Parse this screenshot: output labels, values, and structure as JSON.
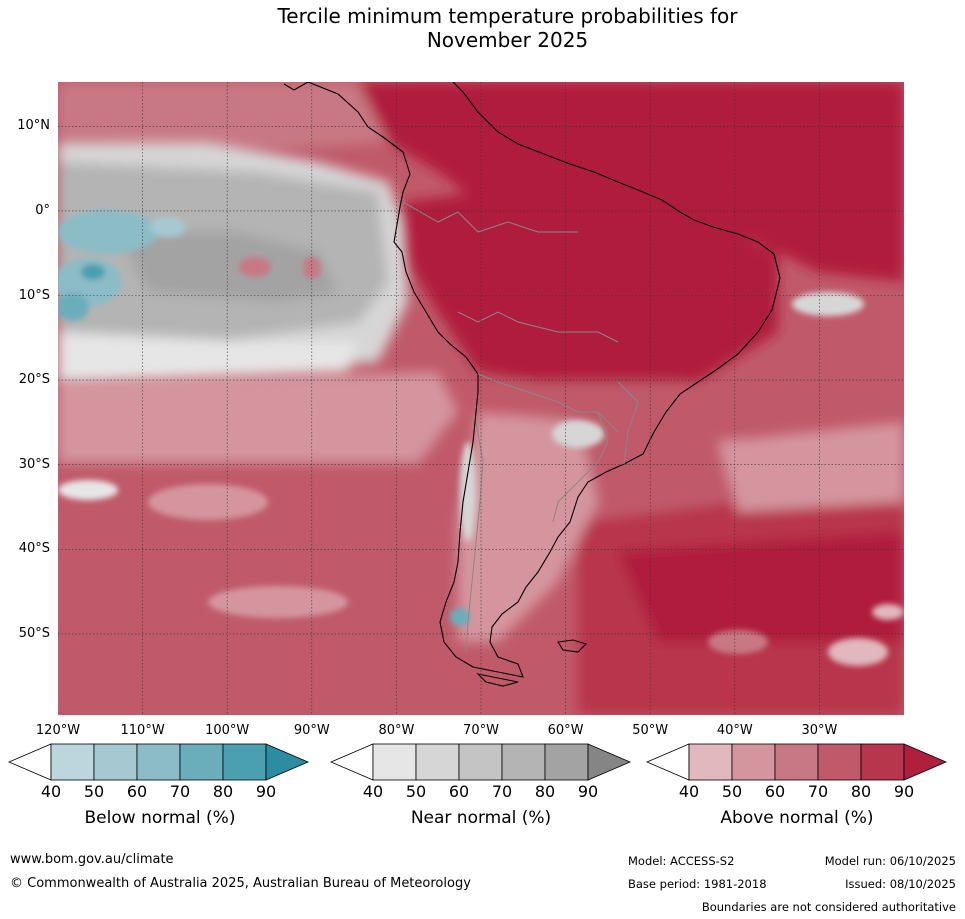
{
  "title": {
    "line1": "Tercile minimum temperature probabilities for",
    "line2": "November 2025"
  },
  "map": {
    "lat_labels": [
      "10°N",
      "0°",
      "10°S",
      "20°S",
      "30°S",
      "40°S",
      "50°S"
    ],
    "lat_values": [
      10,
      0,
      -10,
      -20,
      -30,
      -40,
      -50
    ],
    "lon_labels": [
      "120°W",
      "110°W",
      "100°W",
      "90°W",
      "80°W",
      "70°W",
      "60°W",
      "50°W",
      "40°W",
      "30°W"
    ],
    "lon_values": [
      -120,
      -110,
      -100,
      -90,
      -80,
      -70,
      -60,
      -50,
      -40,
      -30
    ],
    "lon_range": [
      -120,
      -20
    ],
    "lat_range": [
      -60,
      15
    ]
  },
  "legend": {
    "ticks": [
      "40",
      "50",
      "60",
      "70",
      "80",
      "90"
    ],
    "below": {
      "title": "Below normal (%)",
      "colors": [
        "#ffffff",
        "#bcd6dd",
        "#a6c9d1",
        "#8cbcc6",
        "#6aaebb",
        "#4a9fb0",
        "#2b8da1"
      ]
    },
    "near": {
      "title": "Near normal (%)",
      "colors": [
        "#ffffff",
        "#e6e6e6",
        "#d6d6d6",
        "#c4c4c4",
        "#b4b4b4",
        "#a3a3a3",
        "#858585"
      ]
    },
    "above": {
      "title": "Above normal (%)",
      "colors": [
        "#ffffff",
        "#e0b8be",
        "#d4959f",
        "#c87884",
        "#c05a6a",
        "#b8364c",
        "#b01f3c"
      ]
    }
  },
  "footer": {
    "website": "www.bom.gov.au/climate",
    "copyright": "© Commonwealth of Australia 2025, Australian Bureau of Meteorology",
    "model": "Model: ACCESS-S2",
    "model_run": "Model run: 06/10/2025",
    "base_period": "Base period: 1981-2018",
    "issued": "Issued: 08/10/2025",
    "disclaimer": "Boundaries are not considered authoritative"
  }
}
